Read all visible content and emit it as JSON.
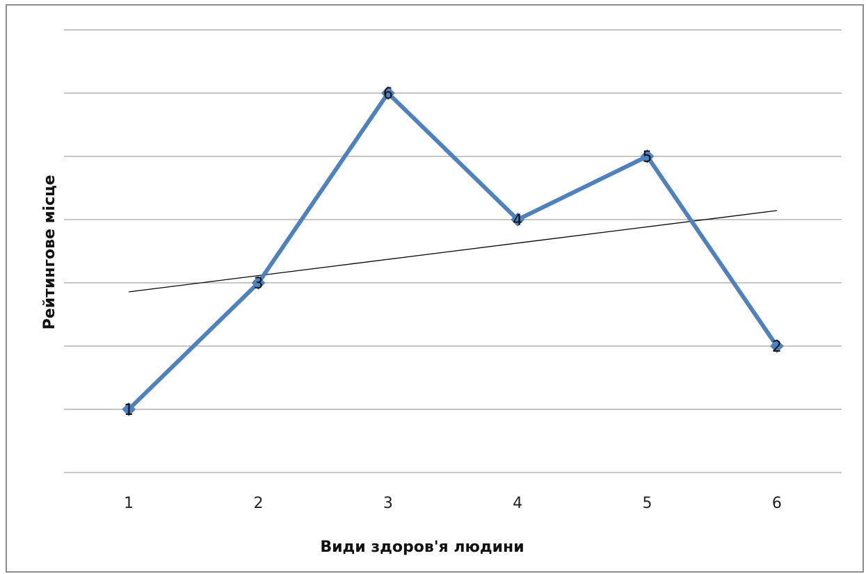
{
  "chart_data": {
    "type": "line",
    "title": "",
    "xlabel": "Види здоров'я людини",
    "ylabel": "Рейтингове місце",
    "categories": [
      "1",
      "2",
      "3",
      "4",
      "5",
      "6"
    ],
    "series": [
      {
        "values": [
          1,
          3,
          6,
          4,
          5,
          2
        ],
        "data_labels": [
          "1",
          "3",
          "6",
          "4",
          "5",
          "2"
        ],
        "color": "#4f81bd",
        "marker": "diamond"
      }
    ],
    "trendline": {
      "type": "linear",
      "color": "#000000"
    },
    "ylim": [
      0,
      7
    ],
    "y_grid_step": 1,
    "grid": true,
    "y_tick_labels_shown": false,
    "legend": "none"
  }
}
